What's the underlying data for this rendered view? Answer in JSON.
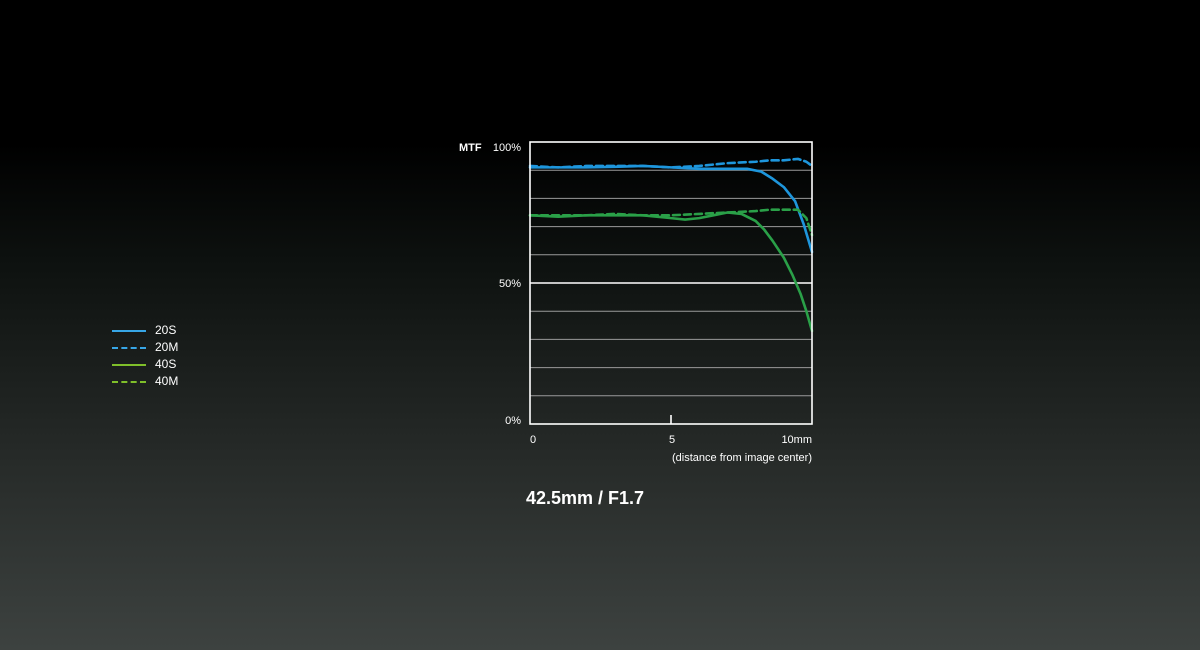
{
  "caption": "42.5mm / F1.7",
  "legend": [
    {
      "label": "20S",
      "color": "#37a6e6",
      "dash": false
    },
    {
      "label": "20M",
      "color": "#37a6e6",
      "dash": true
    },
    {
      "label": "40S",
      "color": "#7fbf2a",
      "dash": false
    },
    {
      "label": "40M",
      "color": "#7fbf2a",
      "dash": true
    }
  ],
  "chart_data": {
    "type": "line",
    "y_title": "MTF",
    "x_unit_label": "(distance from image center)",
    "x_ticks": [
      "0",
      "5",
      "10mm"
    ],
    "y_ticks": [
      "0%",
      "50%",
      "100%"
    ],
    "xlim": [
      0,
      10
    ],
    "ylim": [
      0,
      100
    ],
    "grid": true,
    "legend_position": "left",
    "series": [
      {
        "name": "20S",
        "color": "#1e96dc",
        "dash": false,
        "x": [
          0,
          1,
          2,
          3,
          4,
          5,
          6,
          7,
          7.7,
          8.2,
          8.6,
          9.0,
          9.4,
          9.7,
          10
        ],
        "y": [
          91,
          91,
          91,
          91.2,
          91.5,
          91,
          90.5,
          90.5,
          90.5,
          89.5,
          87,
          84,
          79,
          71,
          61
        ]
      },
      {
        "name": "20M",
        "color": "#1e96dc",
        "dash": true,
        "x": [
          0,
          1,
          2,
          3,
          4,
          5,
          6,
          7,
          8,
          8.5,
          9,
          9.5,
          9.8,
          10
        ],
        "y": [
          91.5,
          91,
          91.5,
          91.5,
          91.5,
          91,
          91.5,
          92.5,
          93,
          93.5,
          93.5,
          94,
          93,
          91.5
        ]
      },
      {
        "name": "40S",
        "color": "#2aa048",
        "dash": false,
        "x": [
          0,
          1,
          2,
          3,
          4,
          5,
          5.5,
          6,
          6.5,
          7,
          7.5,
          8,
          8.3,
          8.6,
          9,
          9.3,
          9.6,
          9.8,
          10
        ],
        "y": [
          74,
          73.5,
          74,
          74,
          74,
          73,
          72.5,
          73,
          74,
          75,
          74.5,
          72,
          69,
          65,
          59,
          53,
          46,
          40,
          33
        ]
      },
      {
        "name": "40M",
        "color": "#2aa048",
        "dash": true,
        "x": [
          0,
          1,
          2,
          3,
          4,
          5,
          6,
          7,
          8,
          8.5,
          9,
          9.5,
          9.8,
          10
        ],
        "y": [
          74,
          74,
          74,
          74.5,
          74,
          74,
          74.5,
          75,
          75.5,
          76,
          76,
          76,
          73,
          67
        ]
      }
    ]
  }
}
